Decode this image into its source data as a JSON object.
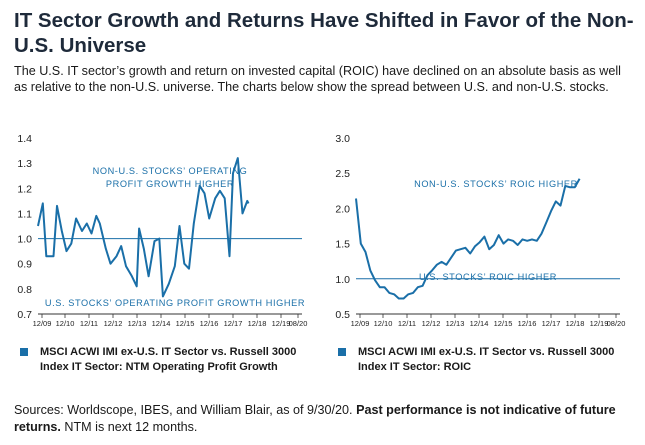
{
  "header": {
    "title": "IT Sector Growth and Returns Have Shifted in Favor of the Non-U.S. Universe",
    "intro": "The U.S. IT sector’s growth and return on invested capital (ROIC) have declined on an absolute basis as well as relative to the non-U.S. universe. The charts below show the spread between U.S. and non-U.S. stocks."
  },
  "colors": {
    "line": "#1a6fa8",
    "reference": "#1a6fa8",
    "annotation": "#1a6fa8",
    "axis": "#333333"
  },
  "chart_data": [
    {
      "type": "line",
      "x_tick_labels": [
        "12/09",
        "12/10",
        "12/11",
        "12/12",
        "12/13",
        "12/14",
        "12/15",
        "12/16",
        "12/17",
        "12/18",
        "12/19",
        "08/20"
      ],
      "y_tick_labels": [
        "0.7",
        "0.8",
        "0.9",
        "1.0",
        "1.1",
        "1.2",
        "1.3",
        "1.4"
      ],
      "ylim": [
        0.7,
        1.4
      ],
      "xlim": [
        2009.75,
        2020.85
      ],
      "reference_line": 1.0,
      "grid": false,
      "annotations": {
        "upper": [
          "NON-U.S. STOCKS’ OPERATING",
          "PROFIT GROWTH HIGHER"
        ],
        "lower": "U.S. STOCKS’ OPERATING PROFIT GROWTH HIGHER"
      },
      "legend": "MSCI ACWI IMI ex-U.S. IT Sector vs. Russell 3000 Index IT Sector: NTM Operating Profit Growth",
      "series": [
        {
          "points": [
            [
              2009.75,
              1.05
            ],
            [
              2009.95,
              1.14
            ],
            [
              2010.1,
              0.93
            ],
            [
              2010.4,
              0.93
            ],
            [
              2010.55,
              1.13
            ],
            [
              2010.75,
              1.03
            ],
            [
              2010.95,
              0.95
            ],
            [
              2011.15,
              0.98
            ],
            [
              2011.35,
              1.08
            ],
            [
              2011.6,
              1.03
            ],
            [
              2011.8,
              1.06
            ],
            [
              2012.0,
              1.02
            ],
            [
              2012.2,
              1.09
            ],
            [
              2012.35,
              1.06
            ],
            [
              2012.6,
              0.96
            ],
            [
              2012.8,
              0.9
            ],
            [
              2013.05,
              0.93
            ],
            [
              2013.25,
              0.97
            ],
            [
              2013.45,
              0.89
            ],
            [
              2013.7,
              0.85
            ],
            [
              2013.9,
              0.81
            ],
            [
              2014.0,
              1.04
            ],
            [
              2014.2,
              0.96
            ],
            [
              2014.4,
              0.85
            ],
            [
              2014.65,
              0.99
            ],
            [
              2014.85,
              1.0
            ],
            [
              2015.0,
              0.77
            ],
            [
              2015.25,
              0.82
            ],
            [
              2015.5,
              0.89
            ],
            [
              2015.7,
              1.05
            ],
            [
              2015.9,
              0.9
            ],
            [
              2016.1,
              0.88
            ],
            [
              2016.3,
              1.06
            ],
            [
              2016.55,
              1.21
            ],
            [
              2016.75,
              1.18
            ],
            [
              2016.95,
              1.08
            ],
            [
              2017.2,
              1.16
            ],
            [
              2017.4,
              1.19
            ],
            [
              2017.6,
              1.16
            ],
            [
              2017.8,
              0.93
            ],
            [
              2017.95,
              1.26
            ],
            [
              2018.15,
              1.32
            ],
            [
              2018.35,
              1.1
            ],
            [
              2018.55,
              1.15
            ],
            [
              2018.6,
              1.14
            ]
          ]
        }
      ]
    },
    {
      "type": "line",
      "x_tick_labels": [
        "12/09",
        "12/10",
        "12/11",
        "12/12",
        "12/13",
        "12/14",
        "12/15",
        "12/16",
        "12/17",
        "12/18",
        "12/19",
        "08/20"
      ],
      "y_tick_labels": [
        "0.5",
        "1.0",
        "1.5",
        "2.0",
        "2.5",
        "3.0"
      ],
      "ylim": [
        0.5,
        3.0
      ],
      "xlim": [
        2009.75,
        2020.85
      ],
      "reference_line": 1.0,
      "grid": false,
      "annotations": {
        "upper": "NON-U.S. STOCKS’ ROIC HIGHER",
        "lower": "U.S. STOCKS’ ROIC HIGHER"
      },
      "legend": "MSCI ACWI IMI ex-U.S. IT Sector vs. Russell 3000 Index IT Sector: ROIC",
      "series": [
        {
          "points": [
            [
              2009.75,
              2.14
            ],
            [
              2009.95,
              1.5
            ],
            [
              2010.15,
              1.38
            ],
            [
              2010.35,
              1.12
            ],
            [
              2010.55,
              0.98
            ],
            [
              2010.75,
              0.88
            ],
            [
              2010.95,
              0.88
            ],
            [
              2011.15,
              0.8
            ],
            [
              2011.35,
              0.78
            ],
            [
              2011.55,
              0.72
            ],
            [
              2011.75,
              0.72
            ],
            [
              2011.95,
              0.78
            ],
            [
              2012.15,
              0.8
            ],
            [
              2012.35,
              0.88
            ],
            [
              2012.55,
              0.9
            ],
            [
              2012.75,
              1.05
            ],
            [
              2012.95,
              1.12
            ],
            [
              2013.15,
              1.2
            ],
            [
              2013.35,
              1.24
            ],
            [
              2013.55,
              1.2
            ],
            [
              2013.75,
              1.3
            ],
            [
              2013.95,
              1.4
            ],
            [
              2014.15,
              1.42
            ],
            [
              2014.35,
              1.44
            ],
            [
              2014.55,
              1.36
            ],
            [
              2014.75,
              1.46
            ],
            [
              2014.95,
              1.52
            ],
            [
              2015.15,
              1.6
            ],
            [
              2015.35,
              1.42
            ],
            [
              2015.55,
              1.48
            ],
            [
              2015.75,
              1.62
            ],
            [
              2015.95,
              1.5
            ],
            [
              2016.15,
              1.56
            ],
            [
              2016.35,
              1.54
            ],
            [
              2016.55,
              1.48
            ],
            [
              2016.75,
              1.56
            ],
            [
              2016.95,
              1.54
            ],
            [
              2017.15,
              1.56
            ],
            [
              2017.35,
              1.54
            ],
            [
              2017.55,
              1.64
            ],
            [
              2017.75,
              1.8
            ],
            [
              2017.95,
              1.96
            ],
            [
              2018.15,
              2.1
            ],
            [
              2018.35,
              2.04
            ],
            [
              2018.55,
              2.32
            ],
            [
              2018.75,
              2.3
            ],
            [
              2018.95,
              2.3
            ],
            [
              2019.15,
              2.42
            ]
          ]
        }
      ]
    }
  ],
  "footer": {
    "sources_text": "Sources: Worldscope, IBES, and William Blair, as of 9/30/20.",
    "sources_bold": "Past performance is not indicative of future returns.",
    "sources_tail": "NTM is next 12 months."
  }
}
